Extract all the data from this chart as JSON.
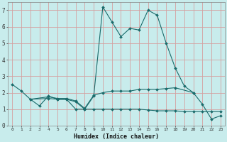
{
  "xlabel": "Humidex (Indice chaleur)",
  "x_values": [
    0,
    1,
    2,
    3,
    4,
    5,
    6,
    7,
    8,
    9,
    10,
    11,
    12,
    13,
    14,
    15,
    16,
    17,
    18,
    19,
    20,
    21,
    22,
    23
  ],
  "line1": [
    2.5,
    2.1,
    1.6,
    1.2,
    1.8,
    1.6,
    1.6,
    1.0,
    1.0,
    1.8,
    7.2,
    6.3,
    5.4,
    5.9,
    5.8,
    7.0,
    6.7,
    5.0,
    3.5,
    2.4,
    2.0,
    1.3,
    0.4,
    0.6
  ],
  "line2_x": [
    2,
    4,
    5,
    6,
    7,
    8,
    9,
    10,
    11,
    12,
    13,
    14,
    15,
    16,
    17,
    18,
    20
  ],
  "line2_y": [
    1.6,
    1.75,
    1.65,
    1.65,
    1.5,
    1.05,
    1.85,
    2.0,
    2.1,
    2.1,
    2.1,
    2.2,
    2.2,
    2.2,
    2.25,
    2.3,
    2.0
  ],
  "line3_x": [
    2,
    4,
    5,
    6,
    7,
    8,
    9,
    10,
    11,
    12,
    13,
    14,
    15,
    16,
    17,
    18,
    19,
    20,
    21,
    22,
    23
  ],
  "line3_y": [
    1.6,
    1.65,
    1.6,
    1.6,
    1.45,
    1.0,
    1.0,
    1.0,
    1.0,
    1.0,
    1.0,
    1.0,
    0.95,
    0.9,
    0.9,
    0.9,
    0.85,
    0.85,
    0.85,
    0.85,
    0.85
  ],
  "line_color": "#1a6b6b",
  "bg_color": "#c8ecec",
  "grid_color": "#d4a0a0",
  "ylim": [
    0,
    7.5
  ],
  "yticks": [
    0,
    1,
    2,
    3,
    4,
    5,
    6,
    7
  ],
  "xlim": [
    -0.5,
    23.5
  ],
  "markersize": 2.0,
  "linewidth": 0.8
}
